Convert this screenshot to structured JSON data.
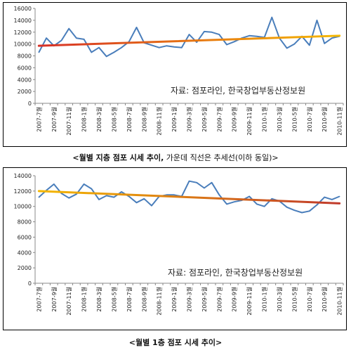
{
  "chart_data": [
    {
      "type": "line",
      "title": "",
      "xlabel": "",
      "ylabel": "",
      "ylim": [
        0,
        16000
      ],
      "yticks": [
        0,
        2000,
        4000,
        6000,
        8000,
        10000,
        12000,
        14000,
        16000
      ],
      "x": [
        "2007-7",
        "2007-8",
        "2007-9",
        "2007-10",
        "2007-11",
        "2007-12",
        "2008-1",
        "2008-2",
        "2008-3",
        "2008-4",
        "2008-5",
        "2008-6",
        "2008-7",
        "2008-8",
        "2008-9",
        "2008-10",
        "2008-11",
        "2008-12",
        "2009-1",
        "2009-2",
        "2009-3",
        "2009-4",
        "2009-5",
        "2009-6",
        "2009-7",
        "2009-8",
        "2009-9",
        "2009-10",
        "2009-11",
        "2009-12",
        "2010-1",
        "2010-2",
        "2010-3",
        "2010-4",
        "2010-5",
        "2010-6",
        "2010-7",
        "2010-8",
        "2010-9",
        "2010-10",
        "2010-11"
      ],
      "xtick_labels": [
        "2007-7월",
        "2007-9월",
        "2007-11월",
        "2008-1월",
        "2008-3월",
        "2008-5월",
        "2008-7월",
        "2008-9월",
        "2008-11월",
        "2009-1월",
        "2009-3월",
        "2009-5월",
        "2009-7월",
        "2009-9월",
        "2009-11월",
        "2010-1월",
        "2010-3월",
        "2010-5월",
        "2010-7월",
        "2010-9월",
        "2010-11월"
      ],
      "series": [
        {
          "values": [
            8600,
            11000,
            9700,
            10600,
            12600,
            11000,
            10800,
            8600,
            9400,
            7900,
            8600,
            9400,
            10400,
            12800,
            10200,
            9800,
            9400,
            9700,
            9500,
            9400,
            11600,
            10300,
            12100,
            12000,
            11600,
            9900,
            10400,
            11000,
            11400,
            11300,
            11100,
            14500,
            11000,
            9300,
            10000,
            11300,
            9800,
            14000,
            10100,
            11000,
            11300
          ]
        }
      ],
      "trendline": {
        "start": 9700,
        "end": 11400
      },
      "annotation": "자료: 점포라인, 한국창업부동산정보원",
      "caption": {
        "bold": "<월별 지층 점포 시세 추이,",
        "normal": " 가운데 직선은 추세선(이하 동일)>"
      },
      "colors": {
        "series": "#4a7ebb",
        "trend_start": "#d73027",
        "trend_end": "#f5b800"
      }
    },
    {
      "type": "line",
      "title": "",
      "xlabel": "",
      "ylabel": "",
      "ylim": [
        0,
        14000
      ],
      "yticks": [
        0,
        2000,
        4000,
        6000,
        8000,
        10000,
        12000,
        14000
      ],
      "x": [
        "2007-7",
        "2007-8",
        "2007-9",
        "2007-10",
        "2007-11",
        "2007-12",
        "2008-1",
        "2008-2",
        "2008-3",
        "2008-4",
        "2008-5",
        "2008-6",
        "2008-7",
        "2008-8",
        "2008-9",
        "2008-10",
        "2008-11",
        "2008-12",
        "2009-1",
        "2009-2",
        "2009-3",
        "2009-4",
        "2009-5",
        "2009-6",
        "2009-7",
        "2009-8",
        "2009-9",
        "2009-10",
        "2009-11",
        "2009-12",
        "2010-1",
        "2010-2",
        "2010-3",
        "2010-4",
        "2010-5",
        "2010-6",
        "2010-7",
        "2010-8",
        "2010-9",
        "2010-10",
        "2010-11"
      ],
      "xtick_labels": [
        "2007-7월",
        "2007-9월",
        "2007-11월",
        "2008-1월",
        "2008-3월",
        "2008-5월",
        "2008-7월",
        "2008-9월",
        "2008-11월",
        "2009-1월",
        "2009-3월",
        "2009-5월",
        "2009-7월",
        "2009-9월",
        "2009-11월",
        "2010-1월",
        "2010-3월",
        "2010-5월",
        "2010-7월",
        "2010-9월",
        "2010-11월"
      ],
      "series": [
        {
          "values": [
            11200,
            12100,
            12900,
            11700,
            11100,
            11600,
            12900,
            12300,
            10900,
            11400,
            11200,
            11900,
            11300,
            10500,
            11000,
            10100,
            11300,
            11500,
            11500,
            11300,
            13300,
            13100,
            12400,
            13100,
            11500,
            10300,
            10600,
            10800,
            11300,
            10300,
            10000,
            11000,
            10700,
            9900,
            9500,
            9200,
            9400,
            10200,
            11200,
            10900,
            11300
          ]
        }
      ],
      "trendline": {
        "start": 12000,
        "end": 10400
      },
      "annotation": "자료: 점포라인, 한국창업부동산정보원",
      "caption": {
        "bold": "<월별 1층 점포 시세 추이>",
        "normal": ""
      },
      "colors": {
        "series": "#4a7ebb",
        "trend_start": "#f5b800",
        "trend_end": "#c0392b"
      }
    }
  ]
}
